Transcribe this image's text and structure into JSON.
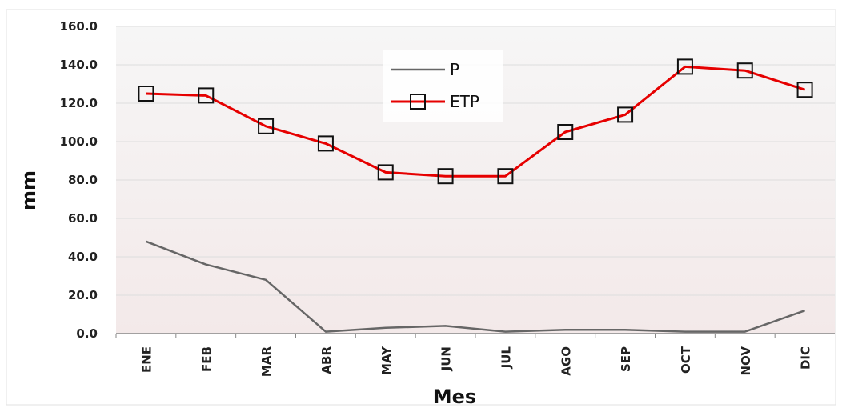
{
  "chart_data": {
    "type": "line",
    "title": "",
    "xlabel": "Mes",
    "ylabel": "mm",
    "categories": [
      "ENE",
      "FEB",
      "MAR",
      "ABR",
      "MAY",
      "JUN",
      "JUL",
      "AGO",
      "SEP",
      "OCT",
      "NOV",
      "DIC"
    ],
    "ylim": [
      0,
      160
    ],
    "yticks": [
      "0.0",
      "20.0",
      "40.0",
      "60.0",
      "80.0",
      "100.0",
      "120.0",
      "140.0",
      "160.0"
    ],
    "grid": true,
    "legend_position": "top-center",
    "series": [
      {
        "name": "P",
        "color": "#666666",
        "marker": "none",
        "values": [
          48,
          36,
          28,
          1,
          3,
          4,
          1,
          2,
          2,
          1,
          1,
          12
        ]
      },
      {
        "name": "ETP",
        "color": "#e60000",
        "marker": "square",
        "values": [
          125,
          124,
          108,
          99,
          84,
          82,
          82,
          105,
          114,
          139,
          137,
          127
        ]
      }
    ]
  }
}
